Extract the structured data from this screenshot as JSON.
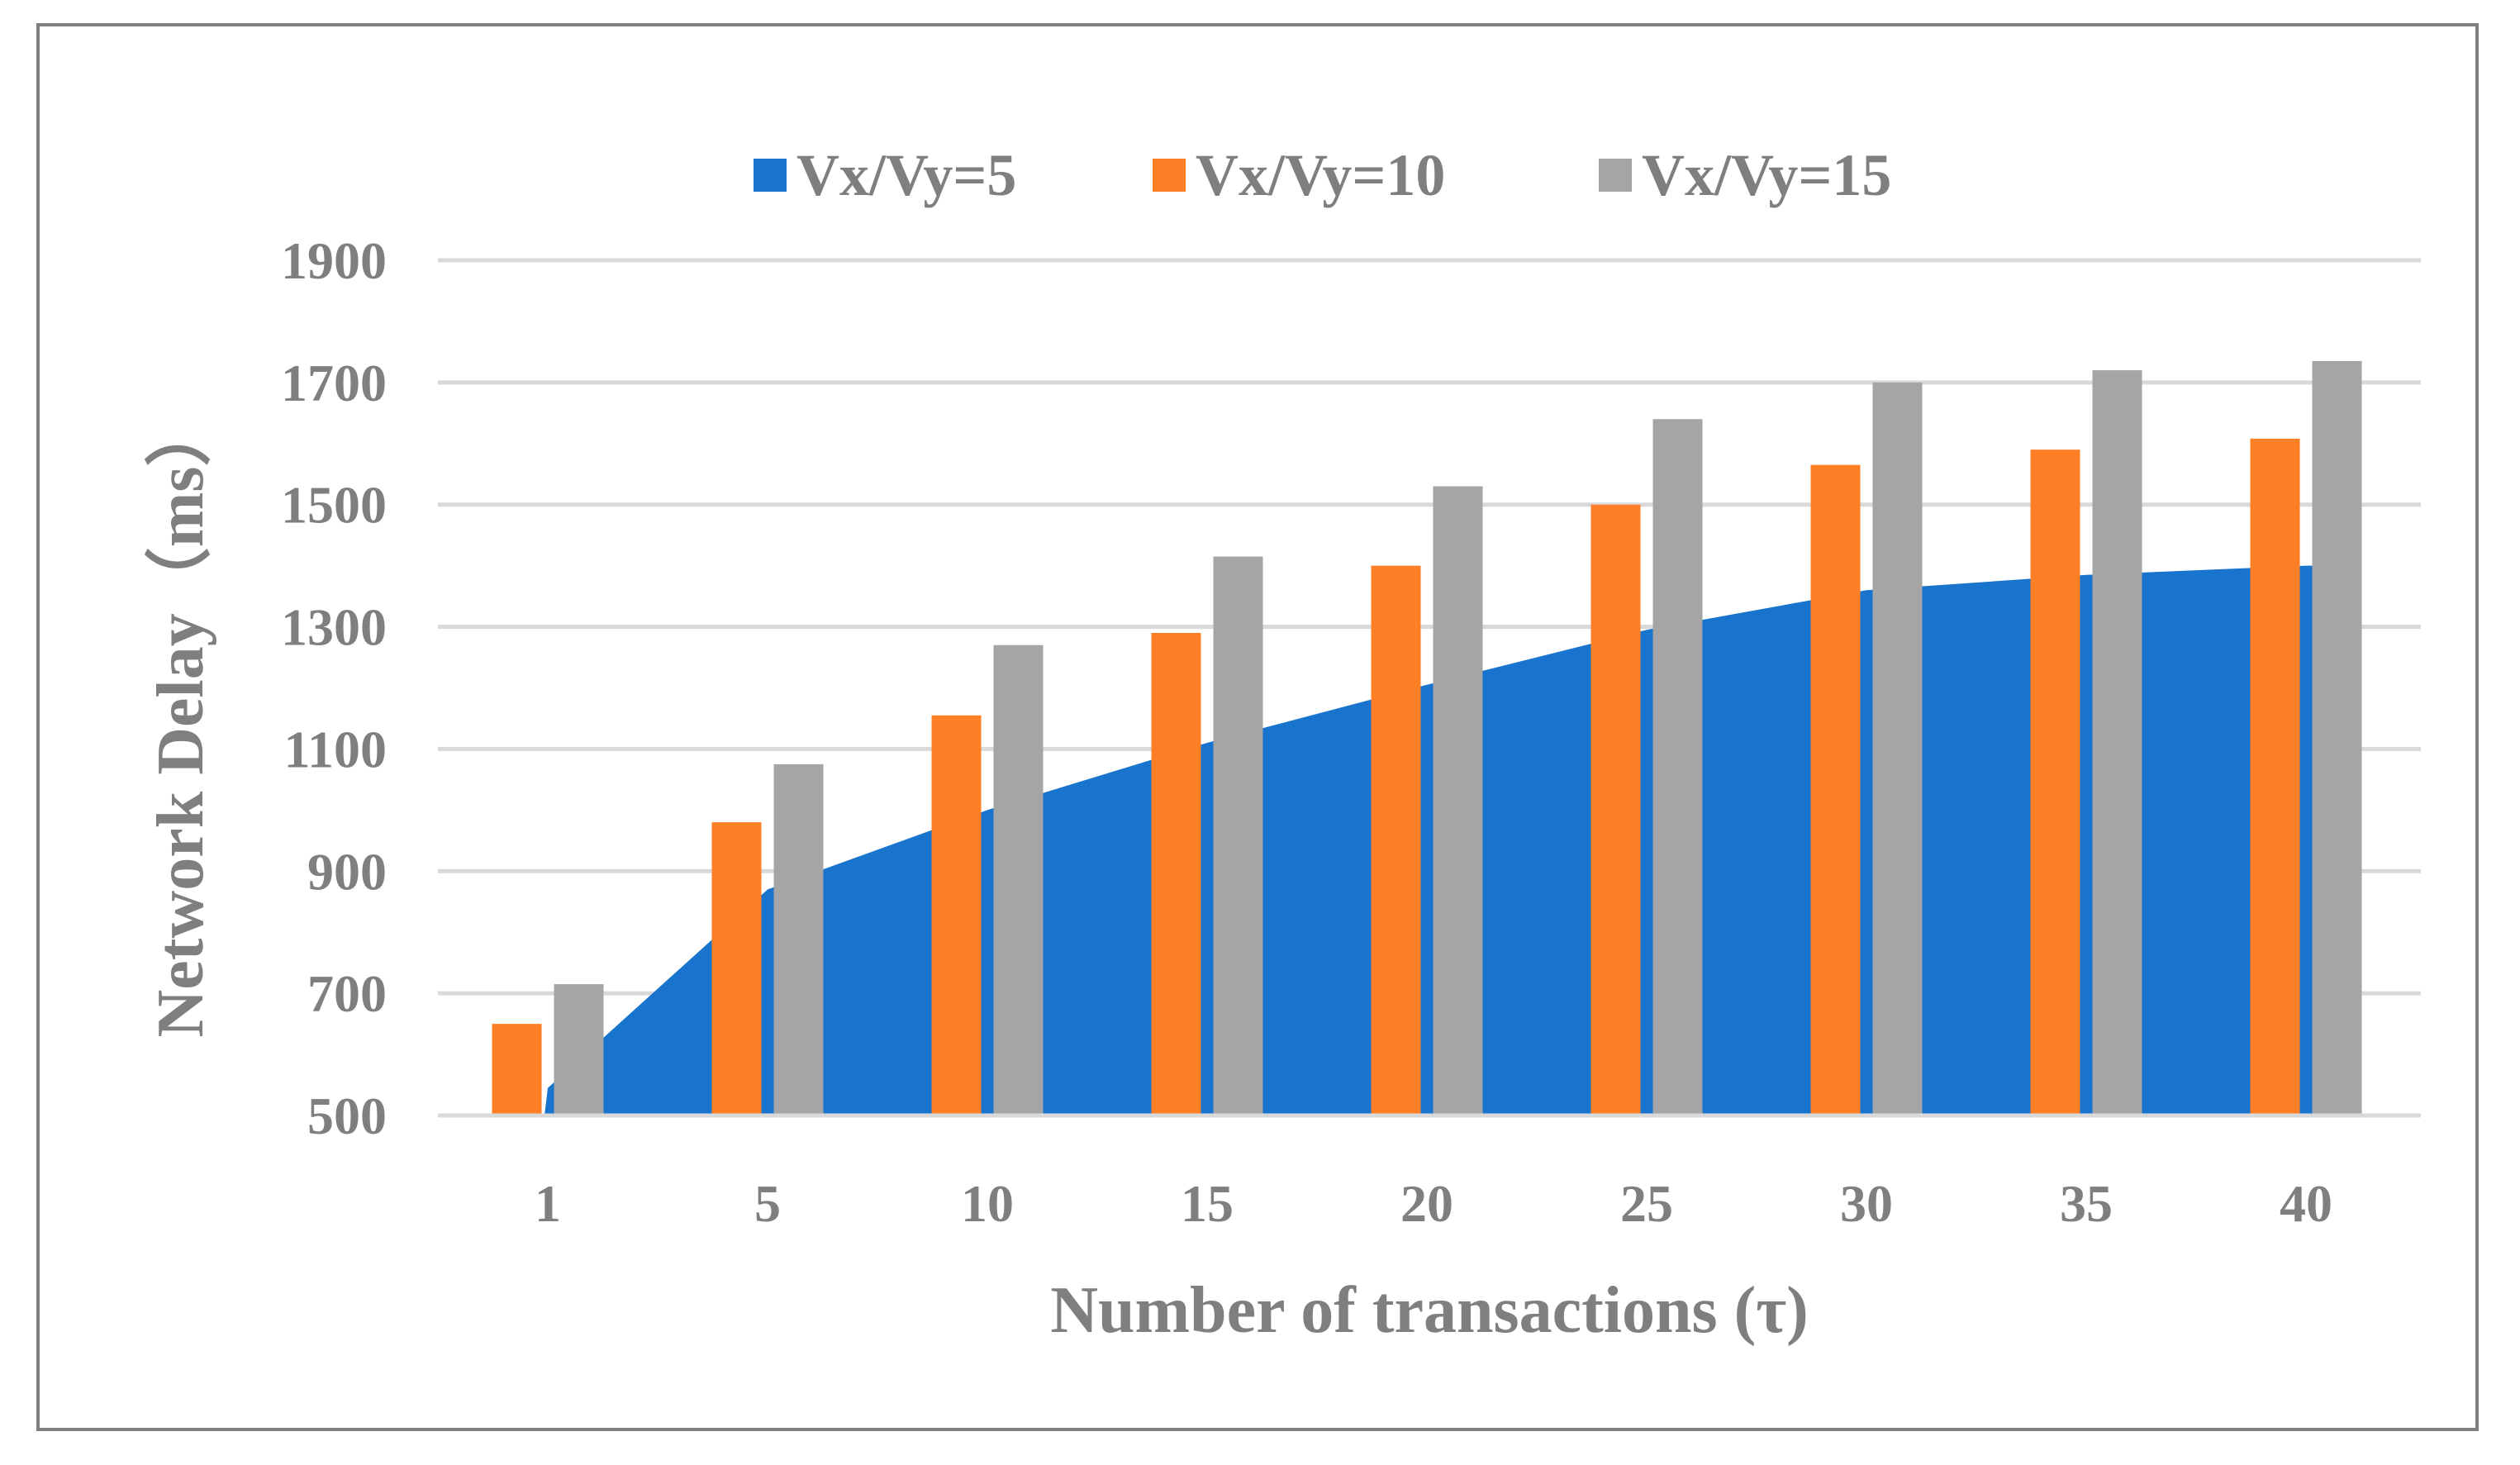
{
  "chart_data": {
    "type": "bar",
    "title": "",
    "xlabel": "Number of transactions (τ)",
    "ylabel": "Network Delay（ms）",
    "categories": [
      "1",
      "5",
      "10",
      "15",
      "20",
      "25",
      "30",
      "35",
      "40"
    ],
    "ylim": [
      500,
      1900
    ],
    "yticks": [
      500,
      700,
      900,
      1100,
      1300,
      1500,
      1700,
      1900
    ],
    "grid": true,
    "legend_position": "top",
    "series": [
      {
        "name": "Vx/Vy=5",
        "render": "area",
        "color": "#1874CD",
        "values": [
          545,
          870,
          1000,
          1110,
          1205,
          1295,
          1360,
          1385,
          1400
        ]
      },
      {
        "name": "Vx/Vy=10",
        "render": "bar",
        "color": "#FF7F27",
        "values": [
          650,
          980,
          1155,
          1290,
          1400,
          1500,
          1565,
          1590,
          1608
        ]
      },
      {
        "name": "Vx/Vy=15",
        "render": "bar",
        "color": "#A5A5A5",
        "values": [
          715,
          1075,
          1270,
          1415,
          1530,
          1640,
          1700,
          1720,
          1735
        ]
      }
    ]
  }
}
